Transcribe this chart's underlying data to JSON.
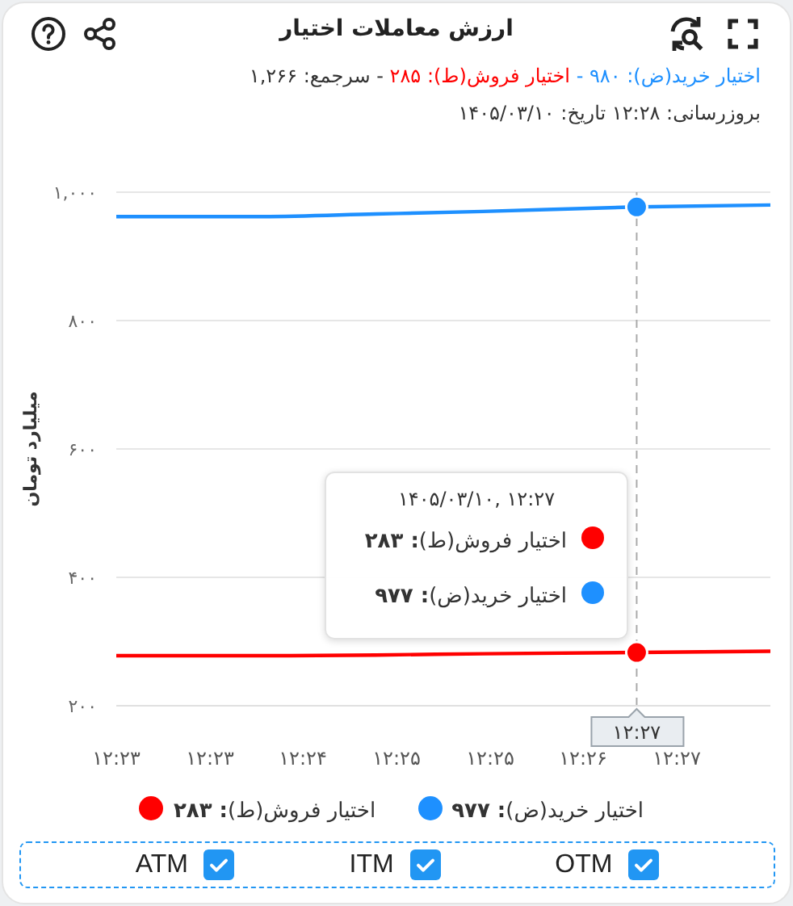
{
  "chart_data": {
    "type": "line",
    "title": "ارزش معاملات اختیار",
    "subtitle": "اختیار خرید(ض): ۹۸۰ - اختیار فروش(ط): ۲۸۵ - سرجمع: ۱,۲۶۶",
    "ylabel": "میلیارد تومان",
    "x": [
      12.3775,
      12.3958,
      12.4099,
      12.4233,
      12.4425,
      12.4592
    ],
    "series": [
      {
        "name": "اختیار خرید(ض)",
        "color": "#1e90ff",
        "values": [
          962,
          962,
          966,
          970,
          977,
          980
        ]
      },
      {
        "name": "اختیار فروش(ط)",
        "color": "#ff0000",
        "values": [
          278,
          278,
          279,
          281,
          283,
          285
        ]
      }
    ],
    "xlim": [
      12.3775,
      12.4592
    ],
    "xticks": [
      {
        "value": 12.3775,
        "label": "۱۲:۲۳"
      },
      {
        "value": 12.3892,
        "label": "۱۲:۲۳"
      },
      {
        "value": 12.4008,
        "label": "۱۲:۲۴"
      },
      {
        "value": 12.4125,
        "label": "۱۲:۲۵"
      },
      {
        "value": 12.4242,
        "label": "۱۲:۲۵"
      },
      {
        "value": 12.4358,
        "label": "۱۲:۲۶"
      },
      {
        "value": 12.4475,
        "label": "۱۲:۲۷"
      }
    ],
    "ylim": [
      200,
      1000
    ],
    "yticks": [
      {
        "value": 200,
        "label": "۲۰۰"
      },
      {
        "value": 400,
        "label": "۴۰۰"
      },
      {
        "value": 600,
        "label": "۶۰۰"
      },
      {
        "value": 800,
        "label": "۸۰۰"
      },
      {
        "value": 1000,
        "label": "۱,۰۰۰"
      }
    ],
    "grid": "y",
    "legend": "bottom",
    "marker": "none",
    "ref_lines": [
      {
        "axis": "x",
        "value": 12.4425,
        "label": "۱۲:۲۷",
        "line_style": "dashed",
        "color": "#aaaaaa"
      }
    ],
    "annotations": [
      "بروزرسانی: ۱۲:۲۸ تاریخ: ۱۴۰۵/۰۳/۱۰",
      "۱۴۰۵/۰۳/۱۰, ۱۲:۲۷",
      ": ۹۷۷",
      ": ۲۸۳",
      "OTM",
      "ITM",
      "ATM"
    ]
  }
}
